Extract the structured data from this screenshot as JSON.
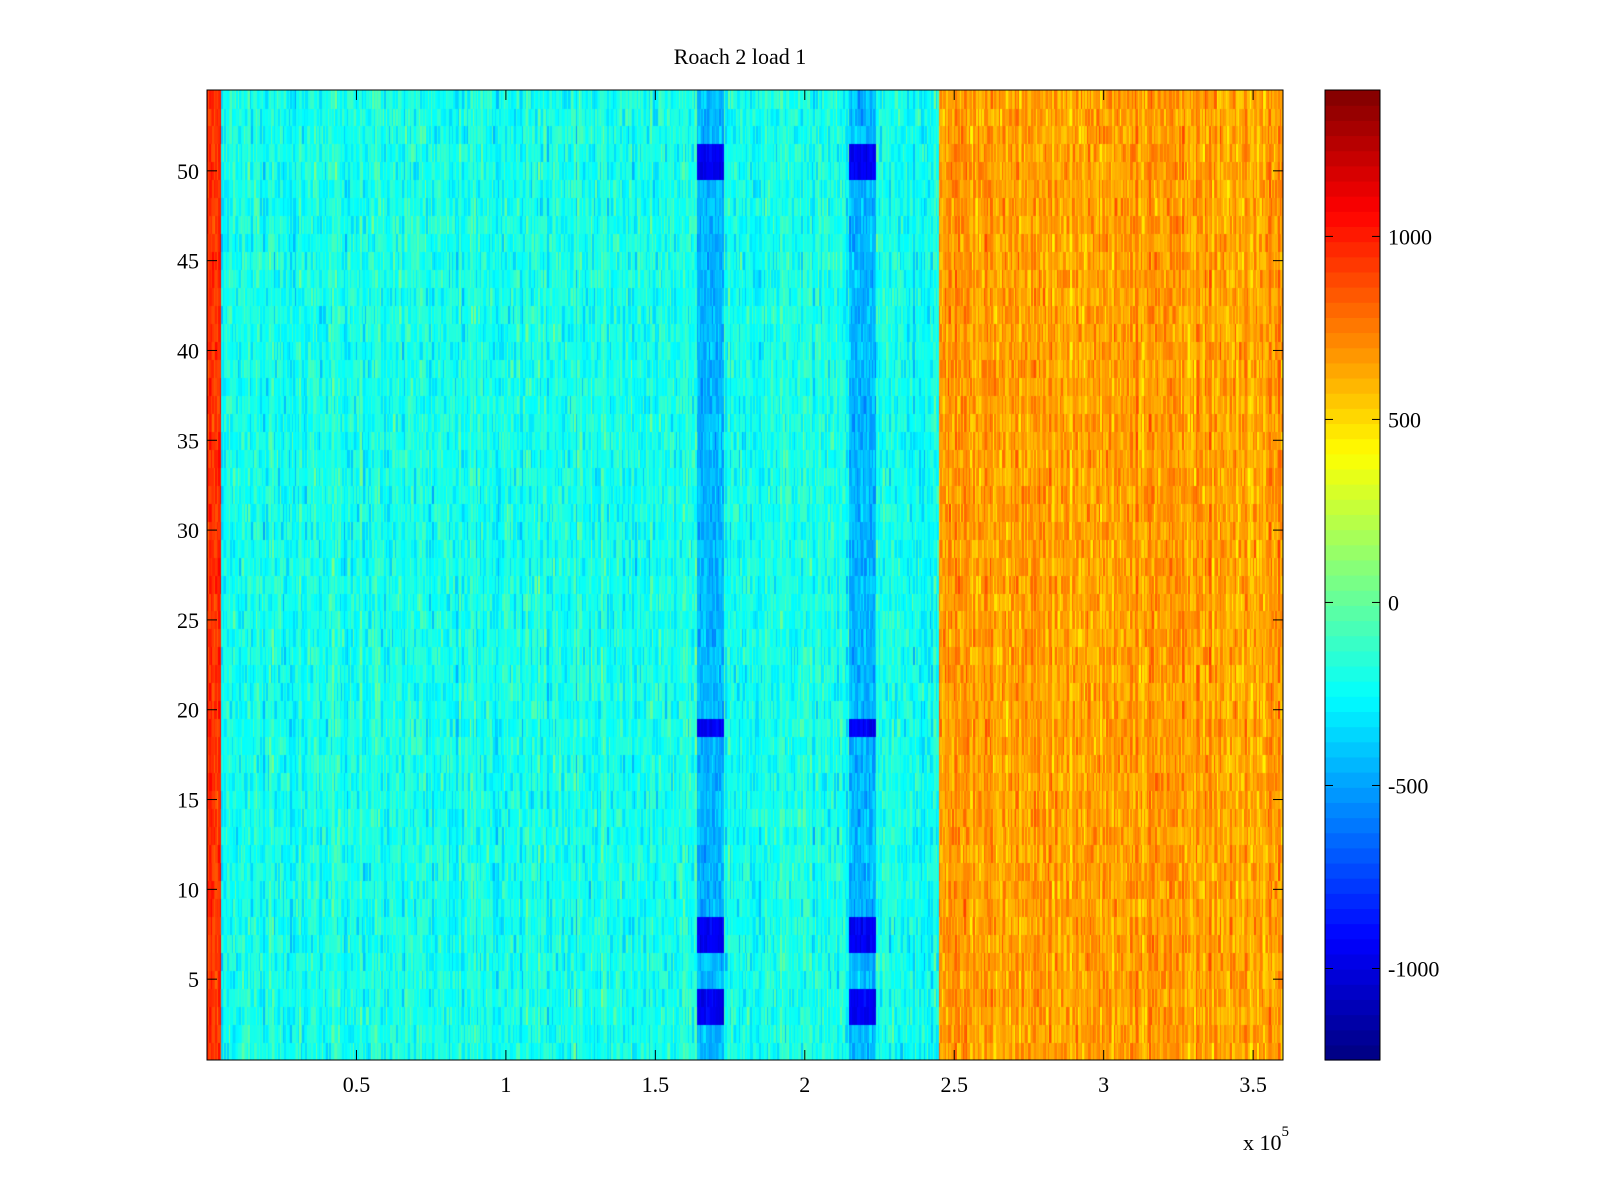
{
  "chart_data": {
    "type": "heatmap",
    "title": "Roach 2 load 1",
    "xlabel": "",
    "ylabel": "",
    "xlim": [
      0,
      360000
    ],
    "ylim": [
      0.5,
      54.5
    ],
    "x_multiplier_label": {
      "base": "x 10",
      "exponent": "5"
    },
    "x_ticks": [
      {
        "value": 50000,
        "label": "0.5"
      },
      {
        "value": 100000,
        "label": "1"
      },
      {
        "value": 150000,
        "label": "1.5"
      },
      {
        "value": 200000,
        "label": "2"
      },
      {
        "value": 250000,
        "label": "2.5"
      },
      {
        "value": 300000,
        "label": "3"
      },
      {
        "value": 350000,
        "label": "3.5"
      }
    ],
    "y_ticks": [
      {
        "value": 5,
        "label": "5"
      },
      {
        "value": 10,
        "label": "10"
      },
      {
        "value": 15,
        "label": "15"
      },
      {
        "value": 20,
        "label": "20"
      },
      {
        "value": 25,
        "label": "25"
      },
      {
        "value": 30,
        "label": "30"
      },
      {
        "value": 35,
        "label": "35"
      },
      {
        "value": 40,
        "label": "40"
      },
      {
        "value": 45,
        "label": "45"
      },
      {
        "value": 50,
        "label": "50"
      }
    ],
    "rows": 54,
    "colormap": "jet",
    "color_range": [
      -1250,
      1400
    ],
    "colorbar_ticks": [
      {
        "value": 1000,
        "label": "1000"
      },
      {
        "value": 500,
        "label": "500"
      },
      {
        "value": 0,
        "label": "0"
      },
      {
        "value": -500,
        "label": "-500"
      },
      {
        "value": -1000,
        "label": "-1000"
      }
    ],
    "regions": [
      {
        "x": [
          0,
          5000
        ],
        "mean": 950,
        "note": "hot left edge"
      },
      {
        "x": [
          5000,
          245000
        ],
        "mean": -200,
        "note": "cyan/green band"
      },
      {
        "x": [
          245000,
          360000
        ],
        "mean": 650,
        "note": "orange/yellow band"
      }
    ],
    "features": [
      {
        "x": [
          164000,
          173000
        ],
        "mean": -700,
        "rows_strong": [
          3,
          4,
          7,
          8,
          19,
          50,
          51
        ],
        "note": "blue column"
      },
      {
        "x": [
          215000,
          224000
        ],
        "mean": -700,
        "rows_strong": [
          3,
          4,
          7,
          8,
          19,
          50,
          51
        ],
        "note": "blue column"
      }
    ],
    "grid": false,
    "legend": "colorbar-right"
  }
}
